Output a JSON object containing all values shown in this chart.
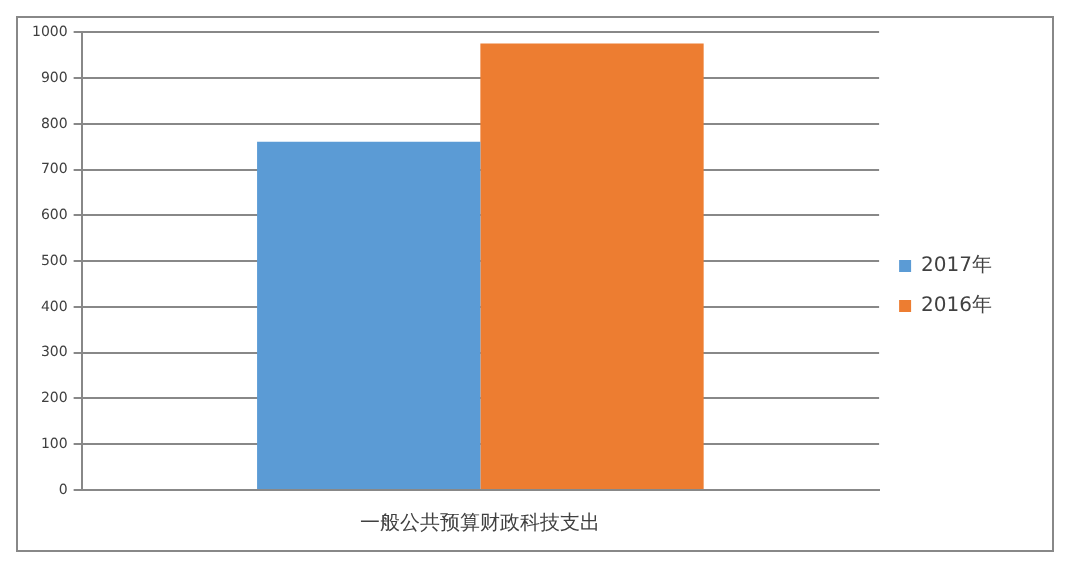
{
  "chart_data": {
    "type": "bar",
    "categories": [
      "一般公共预算财政科技支出"
    ],
    "series": [
      {
        "name": "2017年",
        "color": "#5b9bd5",
        "values": [
          761
        ]
      },
      {
        "name": "2016年",
        "color": "#ed7d31",
        "values": [
          976
        ]
      }
    ],
    "ylim": [
      0,
      1000
    ],
    "yticks": [
      0,
      100,
      200,
      300,
      400,
      500,
      600,
      700,
      800,
      900,
      1000
    ],
    "grid": "y",
    "legend": "right"
  }
}
